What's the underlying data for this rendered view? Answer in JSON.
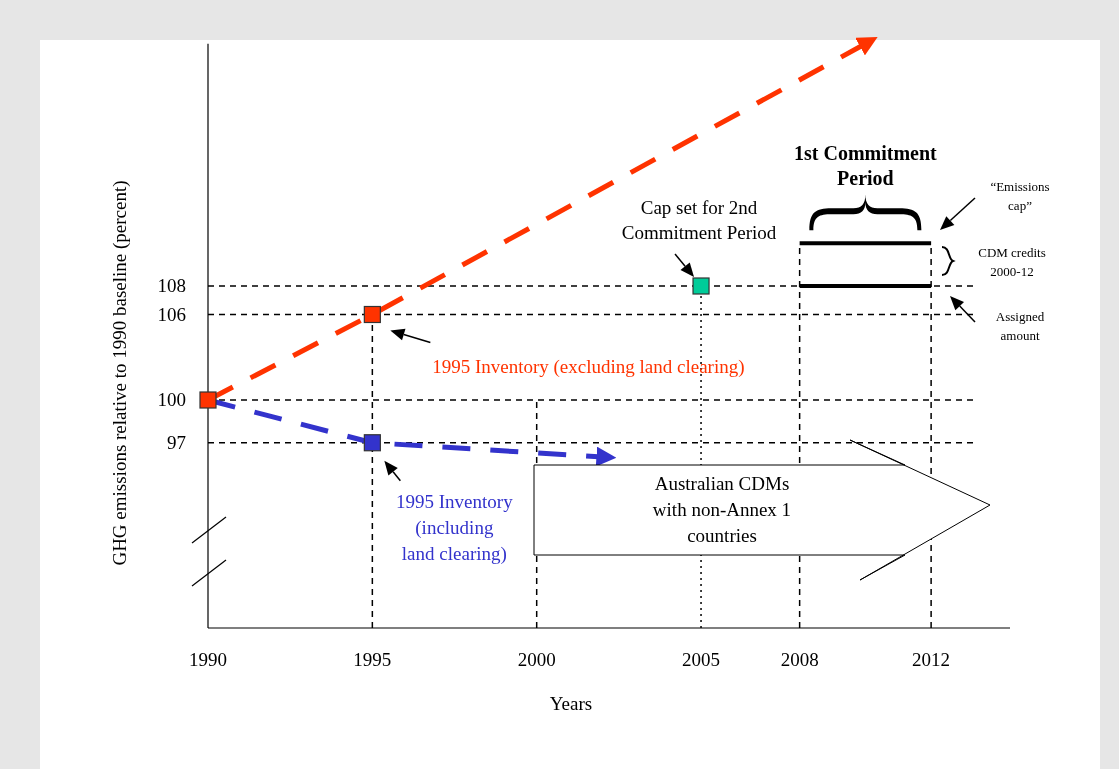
{
  "chart_data": {
    "type": "line",
    "xlabel": "Years",
    "ylabel": "GHG emissions relative to 1990 baseline (percent)",
    "xlim": [
      1990,
      2014.4
    ],
    "xticks": [
      1990,
      1995,
      2000,
      2005,
      2008,
      2012
    ],
    "ylim": [
      84,
      125
    ],
    "yticks": [
      97,
      100,
      106,
      108
    ],
    "series": [
      {
        "name": "1995 Inventory (excluding land clearing)",
        "color": "#ff3300",
        "line_style": "dashed",
        "marker": "none",
        "x": [
          1990,
          1995,
          2010
        ],
        "values": [
          100,
          106,
          125
        ]
      },
      {
        "name": "1995 Inventory (including land clearing)",
        "color": "#3333cc",
        "line_style": "dashed",
        "marker": "none",
        "x": [
          1990,
          1995,
          2002
        ],
        "values": [
          100,
          97,
          96
        ]
      },
      {
        "color": "#000000",
        "line_style": "solid",
        "marker": "none",
        "x": [
          2008,
          2012
        ],
        "values": [
          111,
          111
        ]
      },
      {
        "color": "#000000",
        "line_style": "solid",
        "marker": "none",
        "x": [
          2008,
          2012
        ],
        "values": [
          108,
          108
        ]
      },
      {
        "type": "scatter",
        "color": "#ff3300",
        "marker": "square",
        "colors": [
          "#ff3300",
          "#ff3300",
          "#3333cc",
          "#00cc99"
        ],
        "x": [
          1990,
          1995,
          1995,
          2005
        ],
        "values": [
          100,
          106,
          97,
          108
        ]
      }
    ],
    "ref_lines": [
      {
        "axis": "y",
        "value": 108,
        "color": "#000000",
        "line_style": "dashed"
      },
      {
        "axis": "y",
        "value": 106,
        "color": "#000000",
        "line_style": "dashed"
      },
      {
        "axis": "y",
        "value": 100,
        "color": "#000000",
        "line_style": "dashed"
      },
      {
        "axis": "y",
        "value": 97,
        "color": "#000000",
        "line_style": "dashed"
      },
      {
        "axis": "x",
        "value": 1995,
        "color": "#000000",
        "line_style": "dashed"
      },
      {
        "axis": "x",
        "value": 2000,
        "color": "#000000",
        "line_style": "dashed"
      },
      {
        "axis": "x",
        "value": 2005,
        "color": "#000000",
        "line_style": "dotted"
      },
      {
        "axis": "x",
        "value": 2008,
        "color": "#000000",
        "line_style": "dashed"
      },
      {
        "axis": "x",
        "value": 2012,
        "color": "#000000",
        "line_style": "dashed"
      }
    ],
    "annotations": [
      {
        "text": "1st Commitment\nPeriod",
        "x": 2010,
        "y": 111
      },
      {
        "text": "Cap set for 2nd\nCommitment Period",
        "x": 2005,
        "y": 108
      },
      "“Emissions\ncap”",
      "CDM credits\n2000-12",
      "Assigned\namount",
      "Australian CDMs\nwith non-Annex 1\ncountries"
    ]
  }
}
